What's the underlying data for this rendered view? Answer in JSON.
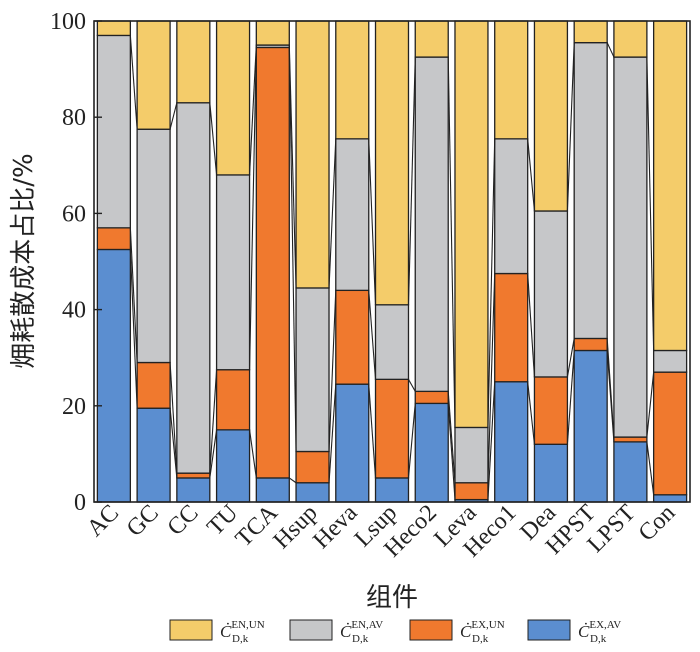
{
  "chart_data": {
    "type": "bar",
    "stacked": true,
    "normalized": true,
    "xlabel": "组件",
    "ylabel": "㶲耗散成本占比/%",
    "ylim": [
      0,
      100
    ],
    "yticks": [
      0,
      20,
      40,
      60,
      80,
      100
    ],
    "grid": false,
    "legend_position": "bottom",
    "categories": [
      "AC",
      "GC",
      "CC",
      "TU",
      "TCA",
      "Hsup",
      "Heva",
      "Lsup",
      "Heco2",
      "Leva",
      "Heco1",
      "Dea",
      "HPST",
      "LPST",
      "Con"
    ],
    "series": [
      {
        "name": "EX,AV",
        "color": "#5b8ed0",
        "values": [
          52.5,
          19.5,
          5,
          15,
          5,
          4,
          24.5,
          5,
          20.5,
          0.5,
          25,
          12,
          31.5,
          12.5,
          1.5
        ]
      },
      {
        "name": "EX,UN",
        "color": "#f0792e",
        "values": [
          4.5,
          9.5,
          1,
          12.5,
          89.5,
          6.5,
          19.5,
          20.5,
          2.5,
          3.5,
          22.5,
          14,
          2.5,
          1,
          25.5
        ]
      },
      {
        "name": "EN,AV",
        "color": "#c6c7c9",
        "values": [
          40,
          48.5,
          77,
          40.5,
          0.5,
          34,
          31.5,
          15.5,
          69.5,
          11.5,
          28,
          34.5,
          61.5,
          79,
          4.5
        ]
      },
      {
        "name": "EN,UN",
        "color": "#f4cc6a",
        "values": [
          3,
          22.5,
          17,
          32,
          5,
          55.5,
          24.5,
          59,
          7.5,
          84.5,
          24.5,
          39.5,
          4.5,
          7.5,
          68.5
        ]
      }
    ],
    "legend": [
      {
        "symbol": "Ċ",
        "sub": "D,k",
        "sup": "EN,UN",
        "color": "#f4cc6a"
      },
      {
        "symbol": "Ċ",
        "sub": "D,k",
        "sup": "EN,AV",
        "color": "#c6c7c9"
      },
      {
        "symbol": "Ċ",
        "sub": "D,k",
        "sup": "EX,UN",
        "color": "#f0792e"
      },
      {
        "symbol": "Ċ",
        "sub": "D,k",
        "sup": "EX,AV",
        "color": "#5b8ed0"
      }
    ]
  }
}
